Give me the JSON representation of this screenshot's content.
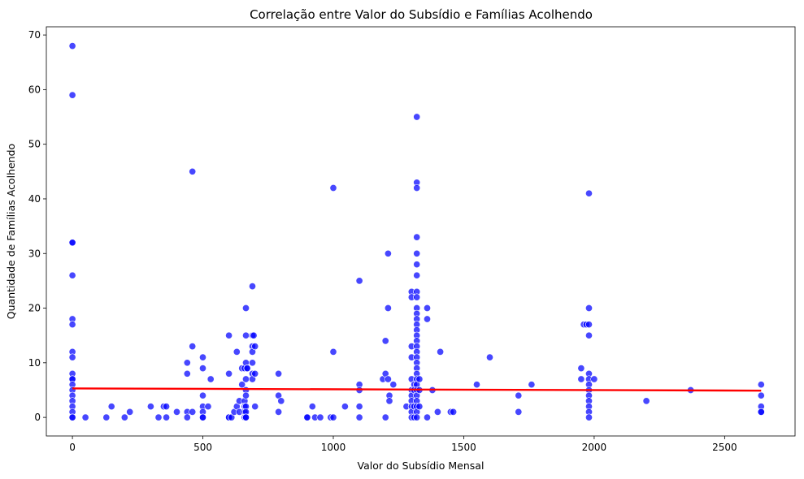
{
  "chart_data": {
    "type": "scatter",
    "title": "Correlação entre Valor do Subsídio e Famílias Acolhendo",
    "xlabel": "Valor do Subsídio Mensal",
    "ylabel": "Quantidade de Famílias Acolhendo",
    "xlim": [
      -100,
      2770
    ],
    "ylim": [
      -3.4,
      71.5
    ],
    "xticks": [
      0,
      500,
      1000,
      1500,
      2000,
      2500
    ],
    "yticks": [
      0,
      10,
      20,
      30,
      40,
      50,
      60,
      70
    ],
    "grid": false,
    "legend": "none",
    "point_color": "#0000ff",
    "trend_color": "#ff0000",
    "trendline": {
      "x": [
        0,
        2640
      ],
      "y": [
        5.3,
        4.9
      ]
    },
    "points": [
      [
        0,
        68
      ],
      [
        0,
        59
      ],
      [
        0,
        32
      ],
      [
        0,
        32
      ],
      [
        0,
        26
      ],
      [
        0,
        18
      ],
      [
        0,
        17
      ],
      [
        0,
        12
      ],
      [
        0,
        11
      ],
      [
        0,
        8
      ],
      [
        0,
        7
      ],
      [
        0,
        7
      ],
      [
        0,
        6
      ],
      [
        0,
        5
      ],
      [
        0,
        4
      ],
      [
        0,
        3
      ],
      [
        0,
        2
      ],
      [
        0,
        1
      ],
      [
        0,
        0
      ],
      [
        0,
        0
      ],
      [
        50,
        0
      ],
      [
        130,
        0
      ],
      [
        150,
        2
      ],
      [
        200,
        0
      ],
      [
        220,
        1
      ],
      [
        300,
        2
      ],
      [
        330,
        0
      ],
      [
        350,
        2
      ],
      [
        360,
        2
      ],
      [
        360,
        0
      ],
      [
        400,
        1
      ],
      [
        440,
        10
      ],
      [
        440,
        8
      ],
      [
        440,
        1
      ],
      [
        440,
        0
      ],
      [
        460,
        45
      ],
      [
        460,
        13
      ],
      [
        460,
        1
      ],
      [
        500,
        11
      ],
      [
        500,
        9
      ],
      [
        500,
        4
      ],
      [
        500,
        2
      ],
      [
        500,
        1
      ],
      [
        500,
        0
      ],
      [
        500,
        0
      ],
      [
        520,
        2
      ],
      [
        530,
        7
      ],
      [
        600,
        15
      ],
      [
        600,
        8
      ],
      [
        600,
        0
      ],
      [
        600,
        0
      ],
      [
        610,
        0
      ],
      [
        620,
        1
      ],
      [
        630,
        2
      ],
      [
        630,
        12
      ],
      [
        640,
        3
      ],
      [
        640,
        1
      ],
      [
        650,
        6
      ],
      [
        650,
        9
      ],
      [
        660,
        9
      ],
      [
        660,
        3
      ],
      [
        660,
        2
      ],
      [
        660,
        1
      ],
      [
        660,
        0
      ],
      [
        665,
        20
      ],
      [
        665,
        15
      ],
      [
        665,
        10
      ],
      [
        665,
        7
      ],
      [
        665,
        5
      ],
      [
        665,
        4
      ],
      [
        665,
        2
      ],
      [
        665,
        1
      ],
      [
        665,
        0
      ],
      [
        665,
        0
      ],
      [
        670,
        9
      ],
      [
        670,
        9
      ],
      [
        690,
        24
      ],
      [
        690,
        15
      ],
      [
        690,
        13
      ],
      [
        690,
        12
      ],
      [
        690,
        10
      ],
      [
        690,
        8
      ],
      [
        690,
        7
      ],
      [
        695,
        15
      ],
      [
        700,
        13
      ],
      [
        700,
        8
      ],
      [
        700,
        2
      ],
      [
        790,
        8
      ],
      [
        790,
        4
      ],
      [
        790,
        1
      ],
      [
        800,
        3
      ],
      [
        900,
        0
      ],
      [
        900,
        0
      ],
      [
        920,
        2
      ],
      [
        930,
        0
      ],
      [
        950,
        0
      ],
      [
        990,
        0
      ],
      [
        1000,
        0
      ],
      [
        1000,
        42
      ],
      [
        1000,
        12
      ],
      [
        1045,
        2
      ],
      [
        1100,
        25
      ],
      [
        1100,
        6
      ],
      [
        1100,
        5
      ],
      [
        1100,
        2
      ],
      [
        1100,
        0
      ],
      [
        1190,
        7
      ],
      [
        1200,
        14
      ],
      [
        1200,
        8
      ],
      [
        1200,
        0
      ],
      [
        1210,
        30
      ],
      [
        1210,
        20
      ],
      [
        1210,
        7
      ],
      [
        1215,
        4
      ],
      [
        1215,
        3
      ],
      [
        1230,
        6
      ],
      [
        1280,
        2
      ],
      [
        1300,
        23
      ],
      [
        1300,
        22
      ],
      [
        1300,
        13
      ],
      [
        1300,
        11
      ],
      [
        1300,
        7
      ],
      [
        1300,
        5
      ],
      [
        1300,
        4
      ],
      [
        1300,
        3
      ],
      [
        1300,
        2
      ],
      [
        1300,
        1
      ],
      [
        1300,
        0
      ],
      [
        1310,
        6
      ],
      [
        1310,
        5
      ],
      [
        1310,
        2
      ],
      [
        1310,
        0
      ],
      [
        1320,
        55
      ],
      [
        1320,
        43
      ],
      [
        1320,
        42
      ],
      [
        1320,
        33
      ],
      [
        1320,
        30
      ],
      [
        1320,
        28
      ],
      [
        1320,
        26
      ],
      [
        1320,
        23
      ],
      [
        1320,
        22
      ],
      [
        1320,
        20
      ],
      [
        1320,
        19
      ],
      [
        1320,
        18
      ],
      [
        1320,
        17
      ],
      [
        1320,
        16
      ],
      [
        1320,
        15
      ],
      [
        1320,
        14
      ],
      [
        1320,
        13
      ],
      [
        1320,
        12
      ],
      [
        1320,
        11
      ],
      [
        1320,
        10
      ],
      [
        1320,
        9
      ],
      [
        1320,
        8
      ],
      [
        1320,
        7
      ],
      [
        1320,
        6
      ],
      [
        1320,
        5
      ],
      [
        1320,
        4
      ],
      [
        1320,
        3
      ],
      [
        1320,
        2
      ],
      [
        1320,
        1
      ],
      [
        1320,
        0
      ],
      [
        1330,
        7
      ],
      [
        1330,
        2
      ],
      [
        1330,
        5
      ],
      [
        1360,
        20
      ],
      [
        1360,
        18
      ],
      [
        1360,
        0
      ],
      [
        1380,
        5
      ],
      [
        1400,
        1
      ],
      [
        1410,
        12
      ],
      [
        1450,
        1
      ],
      [
        1460,
        1
      ],
      [
        1550,
        6
      ],
      [
        1600,
        11
      ],
      [
        1710,
        4
      ],
      [
        1710,
        1
      ],
      [
        1760,
        6
      ],
      [
        1950,
        9
      ],
      [
        1950,
        7
      ],
      [
        1960,
        17
      ],
      [
        1970,
        17
      ],
      [
        1980,
        41
      ],
      [
        1980,
        20
      ],
      [
        1980,
        17
      ],
      [
        1980,
        15
      ],
      [
        1980,
        8
      ],
      [
        1980,
        7
      ],
      [
        1980,
        6
      ],
      [
        1980,
        5
      ],
      [
        1980,
        4
      ],
      [
        1980,
        3
      ],
      [
        1980,
        2
      ],
      [
        1980,
        1
      ],
      [
        1980,
        0
      ],
      [
        2000,
        7
      ],
      [
        2200,
        3
      ],
      [
        2370,
        5
      ],
      [
        2640,
        6
      ],
      [
        2640,
        4
      ],
      [
        2640,
        2
      ],
      [
        2640,
        1
      ],
      [
        2640,
        1
      ]
    ]
  }
}
